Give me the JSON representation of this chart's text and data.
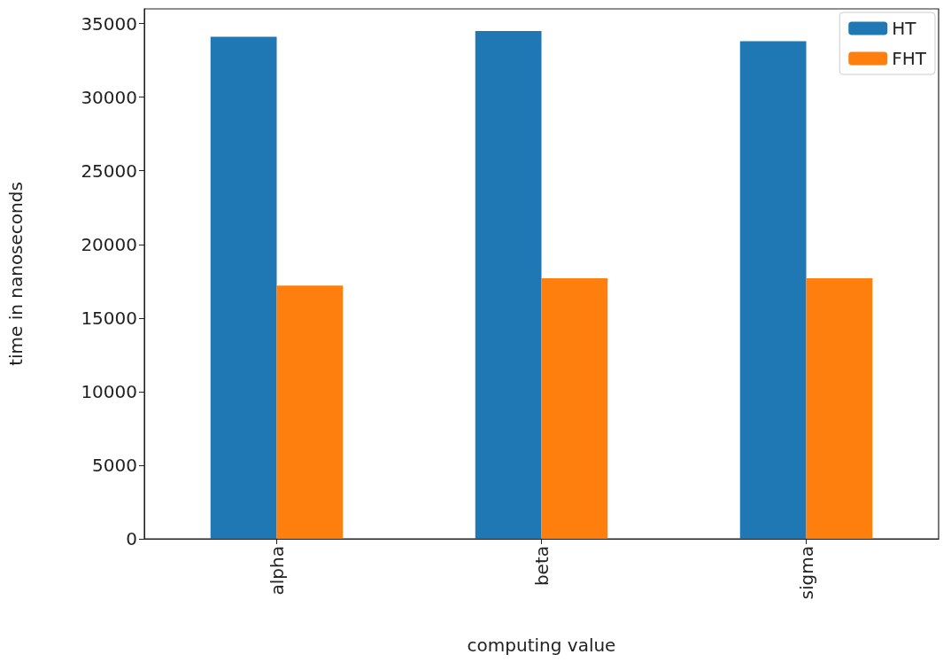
{
  "chart_data": {
    "type": "bar",
    "xlabel": "computing value",
    "ylabel": "time in nanoseconds",
    "categories": [
      "alpha",
      "beta",
      "sigma"
    ],
    "series": [
      {
        "name": "HT",
        "color": "#1f77b4",
        "values": [
          34100,
          34500,
          33800
        ]
      },
      {
        "name": "FHT",
        "color": "#ff7f0e",
        "values": [
          17200,
          17700,
          17700
        ]
      }
    ],
    "ylim": [
      0,
      36000
    ],
    "yticks": [
      0,
      5000,
      10000,
      15000,
      20000,
      25000,
      30000,
      35000
    ],
    "grid": false,
    "legend": "top right"
  }
}
